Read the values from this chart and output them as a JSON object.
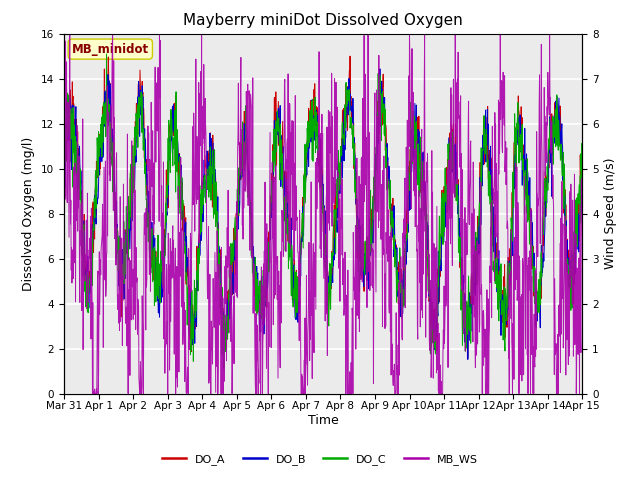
{
  "title": "Mayberry miniDot Dissolved Oxygen",
  "ylabel_left": "Dissolved Oxygen (mg/l)",
  "ylabel_right": "Wind Speed (m/s)",
  "xlabel": "Time",
  "ylim_left": [
    0,
    16
  ],
  "ylim_right": [
    0.0,
    8.0
  ],
  "yticks_left": [
    0,
    2,
    4,
    6,
    8,
    10,
    12,
    14,
    16
  ],
  "yticks_right": [
    0.0,
    1.0,
    2.0,
    3.0,
    4.0,
    5.0,
    6.0,
    7.0,
    8.0
  ],
  "colors": {
    "DO_A": "#cc0000",
    "DO_B": "#0000cc",
    "DO_C": "#00aa00",
    "MB_WS": "#aa00aa"
  },
  "annotation_text": "MB_minidot",
  "annotation_box_color": "#ffffcc",
  "annotation_text_color": "#880000",
  "background_color": "#ebebeb",
  "title_fontsize": 11,
  "axis_label_fontsize": 9,
  "tick_fontsize": 7.5,
  "legend_fontsize": 8,
  "x_tick_labels": [
    "Mar 31",
    "Apr 1",
    "Apr 2",
    "Apr 3",
    "Apr 4",
    "Apr 5",
    "Apr 6",
    "Apr 7",
    "Apr 8",
    "Apr 9",
    "Apr 10",
    "Apr 11",
    "Apr 12",
    "Apr 13",
    "Apr 14",
    "Apr 15"
  ],
  "n_points": 1440,
  "linewidth": 0.7
}
